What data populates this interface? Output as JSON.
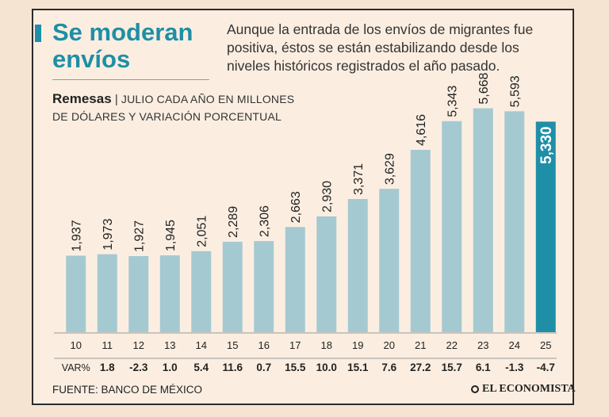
{
  "headline": "Se moderan envíos",
  "subhead": "Aunque la entrada de los envíos de migrantes fue positiva, éstos se están estabilizando desde los niveles históricos registrados el año pasado.",
  "chart_title_bold": "Remesas",
  "chart_title_sep": "|",
  "chart_title_rest": "JULIO CADA AÑO EN MILLONES",
  "chart_subtitle": "DE DÓLARES Y VARIACIÓN PORCENTUAL",
  "source": "FUENTE: BANCO DE MÉXICO",
  "logo": "EL ECONOMISTA",
  "colors": {
    "bar": "#a5c9d1",
    "highlight": "#1e8fa6",
    "text": "#222222",
    "grid": "#999999"
  },
  "chart_data": {
    "type": "bar",
    "title": "Remesas | JULIO CADA AÑO EN MILLONES DE DÓLARES Y VARIACIÓN PORCENTUAL",
    "categories": [
      "10",
      "11",
      "12",
      "13",
      "14",
      "15",
      "16",
      "17",
      "18",
      "19",
      "20",
      "21",
      "22",
      "23",
      "24",
      "25"
    ],
    "values": [
      1937,
      1973,
      1927,
      1945,
      2051,
      2289,
      2306,
      2663,
      2930,
      3371,
      3629,
      4616,
      5343,
      5668,
      5593,
      5330
    ],
    "value_labels": [
      "1,937",
      "1,973",
      "1,927",
      "1,945",
      "2,051",
      "2,289",
      "2,306",
      "2,663",
      "2,930",
      "3,371",
      "3,629",
      "4,616",
      "5,343",
      "5,668",
      "5,593",
      "5,330"
    ],
    "var_label": "VAR%",
    "variation": [
      "1.8",
      "-2.3",
      "1.0",
      "5.4",
      "11.6",
      "0.7",
      "15.5",
      "10.0",
      "15.1",
      "7.6",
      "27.2",
      "15.7",
      "6.1",
      "-1.3",
      "-4.7"
    ],
    "highlight_index": 15,
    "ylim": [
      0,
      5700
    ]
  }
}
